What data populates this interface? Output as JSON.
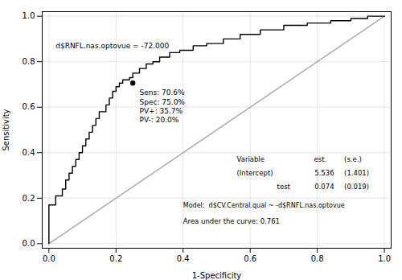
{
  "chart_data": {
    "type": "line",
    "title": "",
    "xlabel": "1-Specificity",
    "ylabel": "Sensitivity",
    "xlim": [
      -0.02,
      1.02
    ],
    "ylim": [
      -0.02,
      1.02
    ],
    "xticks": [
      {
        "value": 0.0,
        "label": "0.0"
      },
      0.2,
      0.4,
      0.6,
      0.8,
      {
        "value": 1.0,
        "label": "1.0"
      }
    ],
    "yticks": [
      {
        "value": 0.0,
        "label": "0.0"
      },
      0.2,
      0.4,
      0.6,
      0.8,
      {
        "value": 1.0,
        "label": "1.0"
      }
    ],
    "grid": true,
    "series": [
      {
        "type": "line",
        "color": "#aaaaaa",
        "x": [
          0,
          1
        ],
        "values": [
          0,
          1
        ]
      },
      {
        "type": "line",
        "color": "#000000",
        "x": [
          0.0,
          0.0,
          0.0,
          0.02,
          0.02,
          0.04,
          0.04,
          0.05,
          0.05,
          0.06,
          0.06,
          0.07,
          0.07,
          0.08,
          0.08,
          0.09,
          0.09,
          0.1,
          0.1,
          0.11,
          0.11,
          0.12,
          0.12,
          0.13,
          0.13,
          0.14,
          0.14,
          0.15,
          0.15,
          0.17,
          0.17,
          0.18,
          0.18,
          0.19,
          0.19,
          0.2,
          0.2,
          0.21,
          0.21,
          0.22,
          0.22,
          0.24,
          0.24,
          0.25,
          0.25,
          0.27,
          0.27,
          0.29,
          0.29,
          0.31,
          0.31,
          0.33,
          0.33,
          0.36,
          0.36,
          0.39,
          0.39,
          0.43,
          0.43,
          0.47,
          0.47,
          0.52,
          0.52,
          0.57,
          0.57,
          0.63,
          0.63,
          0.7,
          0.7,
          0.77,
          0.77,
          0.84,
          0.84,
          0.9,
          0.9,
          0.95,
          0.95,
          1.0
        ],
        "values": [
          0.0,
          0.0,
          0.17,
          0.17,
          0.21,
          0.21,
          0.24,
          0.24,
          0.28,
          0.28,
          0.31,
          0.31,
          0.34,
          0.34,
          0.37,
          0.37,
          0.4,
          0.4,
          0.43,
          0.43,
          0.46,
          0.46,
          0.49,
          0.49,
          0.52,
          0.52,
          0.55,
          0.55,
          0.58,
          0.58,
          0.61,
          0.61,
          0.64,
          0.64,
          0.67,
          0.67,
          0.69,
          0.69,
          0.706,
          0.706,
          0.72,
          0.72,
          0.73,
          0.73,
          0.75,
          0.75,
          0.77,
          0.77,
          0.79,
          0.79,
          0.8,
          0.8,
          0.82,
          0.82,
          0.84,
          0.84,
          0.85,
          0.85,
          0.87,
          0.87,
          0.88,
          0.88,
          0.9,
          0.9,
          0.92,
          0.92,
          0.94,
          0.94,
          0.96,
          0.96,
          0.97,
          0.97,
          0.98,
          0.98,
          0.99,
          0.99,
          1.0,
          1.0
        ]
      },
      {
        "type": "scatter",
        "marker": "circle",
        "color": "#000000",
        "x": [
          0.25
        ],
        "values": [
          0.706
        ]
      }
    ],
    "annotations": [
      "d$RNFL.nas.optovue = -72.000",
      "Sens: 70.6%",
      "Spec: 75.0%",
      "PV+: 35.7%",
      "PV-: 20.0%",
      "Variable",
      "est.",
      "(s.e.)",
      "(Intercept)",
      "5.536",
      "(1.401)",
      "test",
      "0.074",
      "(0.019)",
      "Model:  d$CV.Central.qual ~ -d$RNFL.nas.optovue",
      "Area under the curve: 0.761"
    ]
  }
}
